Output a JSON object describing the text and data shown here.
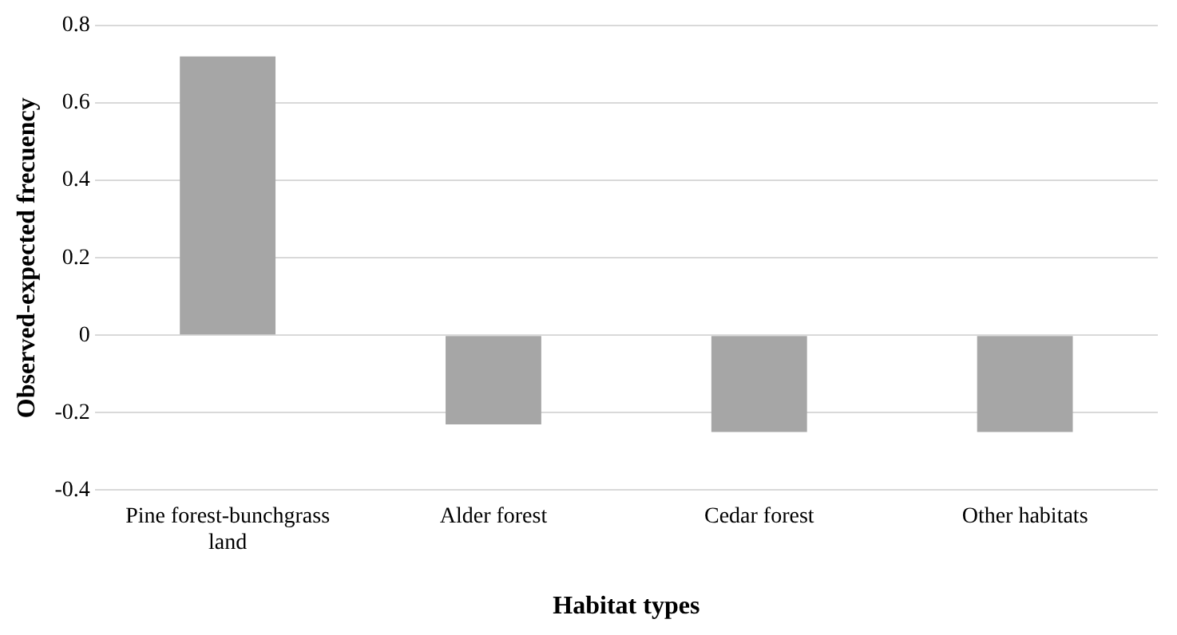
{
  "chart_data": {
    "type": "bar",
    "xlabel": "Habitat types",
    "ylabel": "Observed-expected frecuency",
    "categories": [
      "Pine forest-bunchgrass land",
      "Alder forest",
      "Cedar forest",
      "Other habitats"
    ],
    "values": [
      0.72,
      -0.23,
      -0.25,
      -0.25
    ],
    "color": "#a6a6a6",
    "ylim": [
      -0.4,
      0.8
    ],
    "yticks": [
      -0.4,
      -0.2,
      0,
      0.2,
      0.4,
      0.6,
      0.8
    ],
    "grid": "y"
  }
}
